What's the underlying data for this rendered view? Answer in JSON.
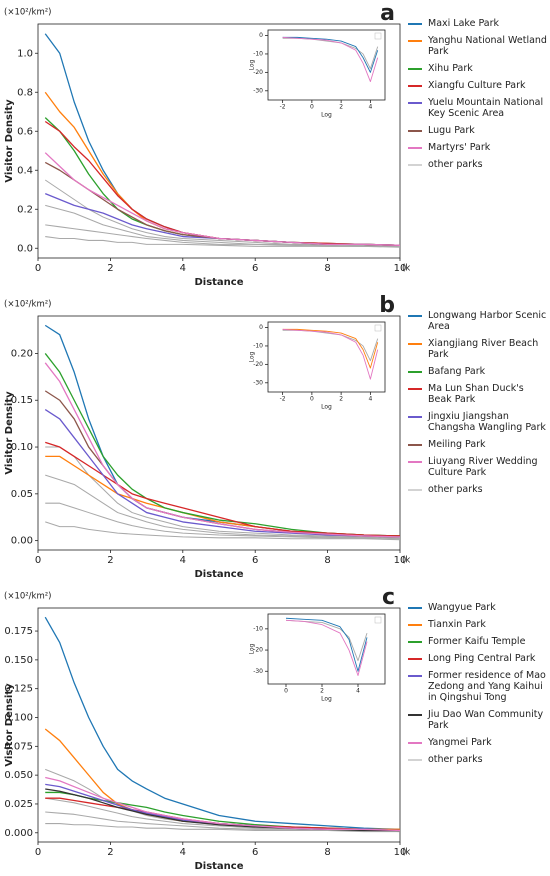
{
  "chart_data": [
    {
      "type": "line",
      "label": "a",
      "y_unit": "(×10²/km²)",
      "x_unit": "(km)",
      "xlabel": "Distance",
      "ylabel": "Visitor Density",
      "x": [
        0.2,
        0.6,
        1,
        1.4,
        1.8,
        2.2,
        2.6,
        3,
        3.5,
        4,
        5,
        6,
        7,
        8,
        9,
        10
      ],
      "xlim": [
        0,
        10
      ],
      "ylim": [
        -0.05,
        1.15
      ],
      "xticks": [
        0,
        2,
        4,
        6,
        8,
        10
      ],
      "yticks": [
        {
          "value": 0,
          "label": "0.0"
        },
        0.2,
        0.4,
        0.6,
        0.8,
        {
          "value": 1,
          "label": "1.0"
        }
      ],
      "series": [
        {
          "name": "Maxi Lake Park",
          "color": "#1f77b4",
          "values": [
            1.1,
            1.0,
            0.75,
            0.55,
            0.4,
            0.28,
            0.2,
            0.15,
            0.11,
            0.08,
            0.05,
            0.04,
            0.03,
            0.025,
            0.02,
            0.015
          ]
        },
        {
          "name": "Yanghu National Wetland Park",
          "color": "#ff7f0e",
          "values": [
            0.8,
            0.7,
            0.62,
            0.5,
            0.38,
            0.28,
            0.2,
            0.14,
            0.1,
            0.08,
            0.05,
            0.04,
            0.03,
            0.025,
            0.02,
            0.015
          ]
        },
        {
          "name": "Xihu Park",
          "color": "#2ca02c",
          "values": [
            0.67,
            0.6,
            0.5,
            0.38,
            0.28,
            0.2,
            0.15,
            0.12,
            0.09,
            0.07,
            0.05,
            0.04,
            0.03,
            0.02,
            0.02,
            0.015
          ]
        },
        {
          "name": "Xiangfu Culture Park",
          "color": "#d62728",
          "values": [
            0.65,
            0.6,
            0.52,
            0.45,
            0.36,
            0.27,
            0.2,
            0.15,
            0.11,
            0.08,
            0.05,
            0.04,
            0.03,
            0.025,
            0.02,
            0.015
          ]
        },
        {
          "name": "Yuelu Mountain National Key Scenic Area",
          "color": "#6a5acd",
          "values": [
            0.28,
            0.25,
            0.22,
            0.2,
            0.18,
            0.15,
            0.12,
            0.1,
            0.08,
            0.06,
            0.05,
            0.04,
            0.03,
            0.02,
            0.02,
            0.015
          ]
        },
        {
          "name": "Lugu Park",
          "color": "#8c564b",
          "values": [
            0.44,
            0.4,
            0.35,
            0.3,
            0.25,
            0.2,
            0.16,
            0.12,
            0.09,
            0.07,
            0.05,
            0.04,
            0.03,
            0.02,
            0.02,
            0.015
          ]
        },
        {
          "name": "Martyrs' Park",
          "color": "#e377c2",
          "values": [
            0.49,
            0.42,
            0.35,
            0.3,
            0.26,
            0.22,
            0.18,
            0.14,
            0.1,
            0.08,
            0.05,
            0.04,
            0.03,
            0.02,
            0.02,
            0.015
          ]
        }
      ],
      "other_parks": {
        "name": "other parks",
        "color": "#a9a9a9",
        "lines": [
          [
            0.35,
            0.3,
            0.25,
            0.2,
            0.16,
            0.13,
            0.1,
            0.08,
            0.06,
            0.05,
            0.04,
            0.03,
            0.02,
            0.02,
            0.015,
            0.01
          ],
          [
            0.22,
            0.2,
            0.18,
            0.15,
            0.12,
            0.1,
            0.08,
            0.06,
            0.05,
            0.04,
            0.03,
            0.02,
            0.02,
            0.015,
            0.01,
            0.01
          ],
          [
            0.12,
            0.11,
            0.1,
            0.09,
            0.08,
            0.07,
            0.06,
            0.05,
            0.04,
            0.03,
            0.02,
            0.02,
            0.015,
            0.01,
            0.01,
            0.01
          ],
          [
            0.06,
            0.05,
            0.05,
            0.04,
            0.04,
            0.03,
            0.03,
            0.02,
            0.02,
            0.02,
            0.015,
            0.01,
            0.01,
            0.01,
            0.01,
            0.005
          ]
        ]
      },
      "inset": {
        "type": "line",
        "xlabel": "Log",
        "ylabel": "Log",
        "x": [
          -2,
          -1,
          0,
          1,
          2,
          3,
          3.5,
          4,
          4.5
        ],
        "xlim": [
          -3,
          5
        ],
        "ylim": [
          -35,
          3
        ],
        "xticks": [
          -2,
          0,
          2,
          4
        ],
        "yticks": [
          0,
          -10,
          -20,
          -30
        ],
        "series": [
          {
            "color": "#a9a9a9",
            "values": [
              -1.5,
              -1.5,
              -2,
              -3,
              -4,
              -7,
              -10,
              -18,
              -6
            ]
          },
          {
            "color": "#1f77b4",
            "values": [
              -1,
              -1,
              -1.5,
              -2,
              -3,
              -6,
              -12,
              -20,
              -8
            ]
          },
          {
            "color": "#e377c2",
            "values": [
              -1,
              -1.5,
              -2,
              -2.5,
              -4,
              -8,
              -15,
              -25,
              -12
            ]
          }
        ]
      }
    },
    {
      "type": "line",
      "label": "b",
      "y_unit": "(×10²/km²)",
      "x_unit": "(km)",
      "xlabel": "Distance",
      "ylabel": "Visitor Density",
      "x": [
        0.2,
        0.6,
        1,
        1.4,
        1.8,
        2.2,
        2.6,
        3,
        3.5,
        4,
        5,
        6,
        7,
        8,
        9,
        10
      ],
      "xlim": [
        0,
        10
      ],
      "ylim": [
        -0.01,
        0.24
      ],
      "xticks": [
        0,
        2,
        4,
        6,
        8,
        10
      ],
      "yticks": [
        {
          "value": 0,
          "label": "0.00"
        },
        0.05,
        {
          "value": 0.1,
          "label": "0.10"
        },
        0.15,
        {
          "value": 0.2,
          "label": "0.20"
        }
      ],
      "series": [
        {
          "name": "Longwang Harbor Scenic Area",
          "color": "#1f77b4",
          "values": [
            0.23,
            0.22,
            0.18,
            0.13,
            0.09,
            0.06,
            0.045,
            0.035,
            0.03,
            0.025,
            0.02,
            0.015,
            0.01,
            0.008,
            0.006,
            0.005
          ]
        },
        {
          "name": "Xiangjiang River Beach Park",
          "color": "#ff7f0e",
          "values": [
            0.09,
            0.09,
            0.08,
            0.07,
            0.06,
            0.05,
            0.045,
            0.04,
            0.035,
            0.03,
            0.02,
            0.015,
            0.01,
            0.008,
            0.006,
            0.005
          ]
        },
        {
          "name": "Bafang Park",
          "color": "#2ca02c",
          "values": [
            0.2,
            0.18,
            0.15,
            0.12,
            0.09,
            0.07,
            0.055,
            0.045,
            0.035,
            0.03,
            0.022,
            0.018,
            0.012,
            0.008,
            0.006,
            0.005
          ]
        },
        {
          "name": "Ma Lun Shan Duck's Beak Park",
          "color": "#d62728",
          "values": [
            0.105,
            0.1,
            0.09,
            0.08,
            0.07,
            0.06,
            0.05,
            0.045,
            0.04,
            0.035,
            0.025,
            0.015,
            0.01,
            0.008,
            0.006,
            0.005
          ]
        },
        {
          "name": "Jingxiu Jiangshan Changsha Wangling Park",
          "color": "#6a5acd",
          "values": [
            0.14,
            0.13,
            0.11,
            0.09,
            0.07,
            0.05,
            0.04,
            0.03,
            0.025,
            0.02,
            0.015,
            0.01,
            0.008,
            0.006,
            0.005,
            0.004
          ]
        },
        {
          "name": "Meiling Park",
          "color": "#8c564b",
          "values": [
            0.16,
            0.15,
            0.13,
            0.1,
            0.08,
            0.06,
            0.045,
            0.035,
            0.03,
            0.025,
            0.018,
            0.012,
            0.009,
            0.007,
            0.005,
            0.004
          ]
        },
        {
          "name": "Liuyang River Wedding Culture Park",
          "color": "#e377c2",
          "values": [
            0.19,
            0.17,
            0.14,
            0.11,
            0.08,
            0.06,
            0.045,
            0.035,
            0.03,
            0.025,
            0.018,
            0.012,
            0.009,
            0.007,
            0.005,
            0.004
          ]
        }
      ],
      "other_parks": {
        "name": "other parks",
        "color": "#a9a9a9",
        "lines": [
          [
            0.1,
            0.1,
            0.09,
            0.07,
            0.055,
            0.04,
            0.03,
            0.025,
            0.02,
            0.015,
            0.01,
            0.008,
            0.006,
            0.005,
            0.004,
            0.003
          ],
          [
            0.07,
            0.065,
            0.06,
            0.05,
            0.04,
            0.03,
            0.025,
            0.02,
            0.015,
            0.012,
            0.008,
            0.006,
            0.005,
            0.004,
            0.003,
            0.003
          ],
          [
            0.04,
            0.04,
            0.035,
            0.03,
            0.025,
            0.02,
            0.016,
            0.013,
            0.01,
            0.008,
            0.006,
            0.005,
            0.004,
            0.003,
            0.003,
            0.002
          ],
          [
            0.02,
            0.015,
            0.015,
            0.012,
            0.01,
            0.008,
            0.007,
            0.006,
            0.005,
            0.004,
            0.003,
            0.003,
            0.002,
            0.002,
            0.002,
            0.001
          ]
        ]
      },
      "inset": {
        "type": "line",
        "xlabel": "Log",
        "ylabel": "Log",
        "x": [
          -2,
          -1,
          0,
          1,
          2,
          3,
          3.5,
          4,
          4.5
        ],
        "xlim": [
          -3,
          5
        ],
        "ylim": [
          -35,
          3
        ],
        "xticks": [
          -2,
          0,
          2,
          4
        ],
        "yticks": [
          0,
          -10,
          -20,
          -30
        ],
        "series": [
          {
            "color": "#a9a9a9",
            "values": [
              -1.5,
              -1.5,
              -2,
              -3,
              -4,
              -7,
              -10,
              -18,
              -6
            ]
          },
          {
            "color": "#ff7f0e",
            "values": [
              -1,
              -1,
              -1.5,
              -2,
              -3,
              -6,
              -12,
              -22,
              -8
            ]
          },
          {
            "color": "#e377c2",
            "values": [
              -1,
              -1.5,
              -2,
              -2.5,
              -4,
              -8,
              -15,
              -28,
              -12
            ]
          }
        ]
      }
    },
    {
      "type": "line",
      "label": "c",
      "y_unit": "(×10²/km²)",
      "x_unit": "(km)",
      "xlabel": "Distance",
      "ylabel": "Visitor Density",
      "x": [
        0.2,
        0.6,
        1,
        1.4,
        1.8,
        2.2,
        2.6,
        3,
        3.5,
        4,
        5,
        6,
        7,
        8,
        9,
        10
      ],
      "xlim": [
        0,
        10
      ],
      "ylim": [
        -0.008,
        0.195
      ],
      "xticks": [
        0,
        2,
        4,
        6,
        8,
        10
      ],
      "yticks": [
        {
          "value": 0,
          "label": "0.000"
        },
        0.025,
        {
          "value": 0.05,
          "label": "0.050"
        },
        0.075,
        {
          "value": 0.1,
          "label": "0.100"
        },
        0.125,
        {
          "value": 0.15,
          "label": "0.150"
        },
        0.175
      ],
      "series": [
        {
          "name": "Wangyue Park",
          "color": "#1f77b4",
          "values": [
            0.187,
            0.165,
            0.13,
            0.1,
            0.075,
            0.055,
            0.045,
            0.038,
            0.03,
            0.025,
            0.015,
            0.01,
            0.008,
            0.006,
            0.004,
            0.003
          ]
        },
        {
          "name": "Tianxin Park",
          "color": "#ff7f0e",
          "values": [
            0.09,
            0.08,
            0.065,
            0.05,
            0.035,
            0.025,
            0.02,
            0.016,
            0.013,
            0.01,
            0.008,
            0.006,
            0.005,
            0.004,
            0.003,
            0.003
          ]
        },
        {
          "name": "Former Kaifu Temple",
          "color": "#2ca02c",
          "values": [
            0.035,
            0.035,
            0.033,
            0.03,
            0.028,
            0.026,
            0.024,
            0.022,
            0.018,
            0.015,
            0.01,
            0.007,
            0.005,
            0.004,
            0.003,
            0.002
          ]
        },
        {
          "name": "Long Ping Central Park",
          "color": "#d62728",
          "values": [
            0.03,
            0.03,
            0.028,
            0.026,
            0.024,
            0.022,
            0.02,
            0.018,
            0.015,
            0.012,
            0.008,
            0.006,
            0.005,
            0.004,
            0.003,
            0.002
          ]
        },
        {
          "name": "Former residence of Mao Zedong and Yang Kaihui in Qingshui Tong",
          "color": "#6a5acd",
          "values": [
            0.042,
            0.04,
            0.036,
            0.032,
            0.028,
            0.024,
            0.02,
            0.017,
            0.014,
            0.011,
            0.008,
            0.006,
            0.004,
            0.003,
            0.003,
            0.002
          ]
        },
        {
          "name": "Jiu Dao Wan Community Park",
          "color": "#333333",
          "values": [
            0.038,
            0.036,
            0.033,
            0.03,
            0.026,
            0.022,
            0.019,
            0.016,
            0.013,
            0.01,
            0.007,
            0.005,
            0.004,
            0.003,
            0.002,
            0.002
          ]
        },
        {
          "name": "Yangmei Park",
          "color": "#e377c2",
          "values": [
            0.048,
            0.045,
            0.04,
            0.035,
            0.03,
            0.026,
            0.022,
            0.018,
            0.015,
            0.012,
            0.008,
            0.006,
            0.004,
            0.003,
            0.003,
            0.002
          ]
        }
      ],
      "other_parks": {
        "name": "other parks",
        "color": "#a9a9a9",
        "lines": [
          [
            0.055,
            0.05,
            0.045,
            0.038,
            0.03,
            0.024,
            0.019,
            0.015,
            0.012,
            0.01,
            0.007,
            0.005,
            0.004,
            0.003,
            0.002,
            0.002
          ],
          [
            0.03,
            0.028,
            0.026,
            0.023,
            0.02,
            0.017,
            0.014,
            0.012,
            0.01,
            0.008,
            0.006,
            0.004,
            0.003,
            0.003,
            0.002,
            0.002
          ],
          [
            0.018,
            0.017,
            0.016,
            0.014,
            0.012,
            0.01,
            0.009,
            0.008,
            0.007,
            0.006,
            0.004,
            0.003,
            0.003,
            0.002,
            0.002,
            0.001
          ],
          [
            0.008,
            0.008,
            0.007,
            0.007,
            0.006,
            0.005,
            0.005,
            0.004,
            0.004,
            0.003,
            0.003,
            0.002,
            0.002,
            0.002,
            0.001,
            0.001
          ]
        ]
      },
      "inset": {
        "type": "line",
        "xlabel": "Log",
        "ylabel": "Log",
        "x": [
          0,
          1,
          2,
          3,
          3.5,
          4,
          4.5
        ],
        "xlim": [
          -1,
          5.5
        ],
        "ylim": [
          -36,
          -3
        ],
        "xticks": [
          0,
          2,
          4
        ],
        "yticks": [
          -10,
          -20,
          -30
        ],
        "series": [
          {
            "color": "#a9a9a9",
            "values": [
              -6,
              -6.5,
              -7,
              -10,
              -14,
              -25,
              -12
            ]
          },
          {
            "color": "#1f77b4",
            "values": [
              -5,
              -5.5,
              -6,
              -9,
              -15,
              -30,
              -14
            ]
          },
          {
            "color": "#e377c2",
            "values": [
              -6,
              -6.5,
              -8,
              -12,
              -20,
              -32,
              -16
            ]
          }
        ]
      }
    }
  ]
}
